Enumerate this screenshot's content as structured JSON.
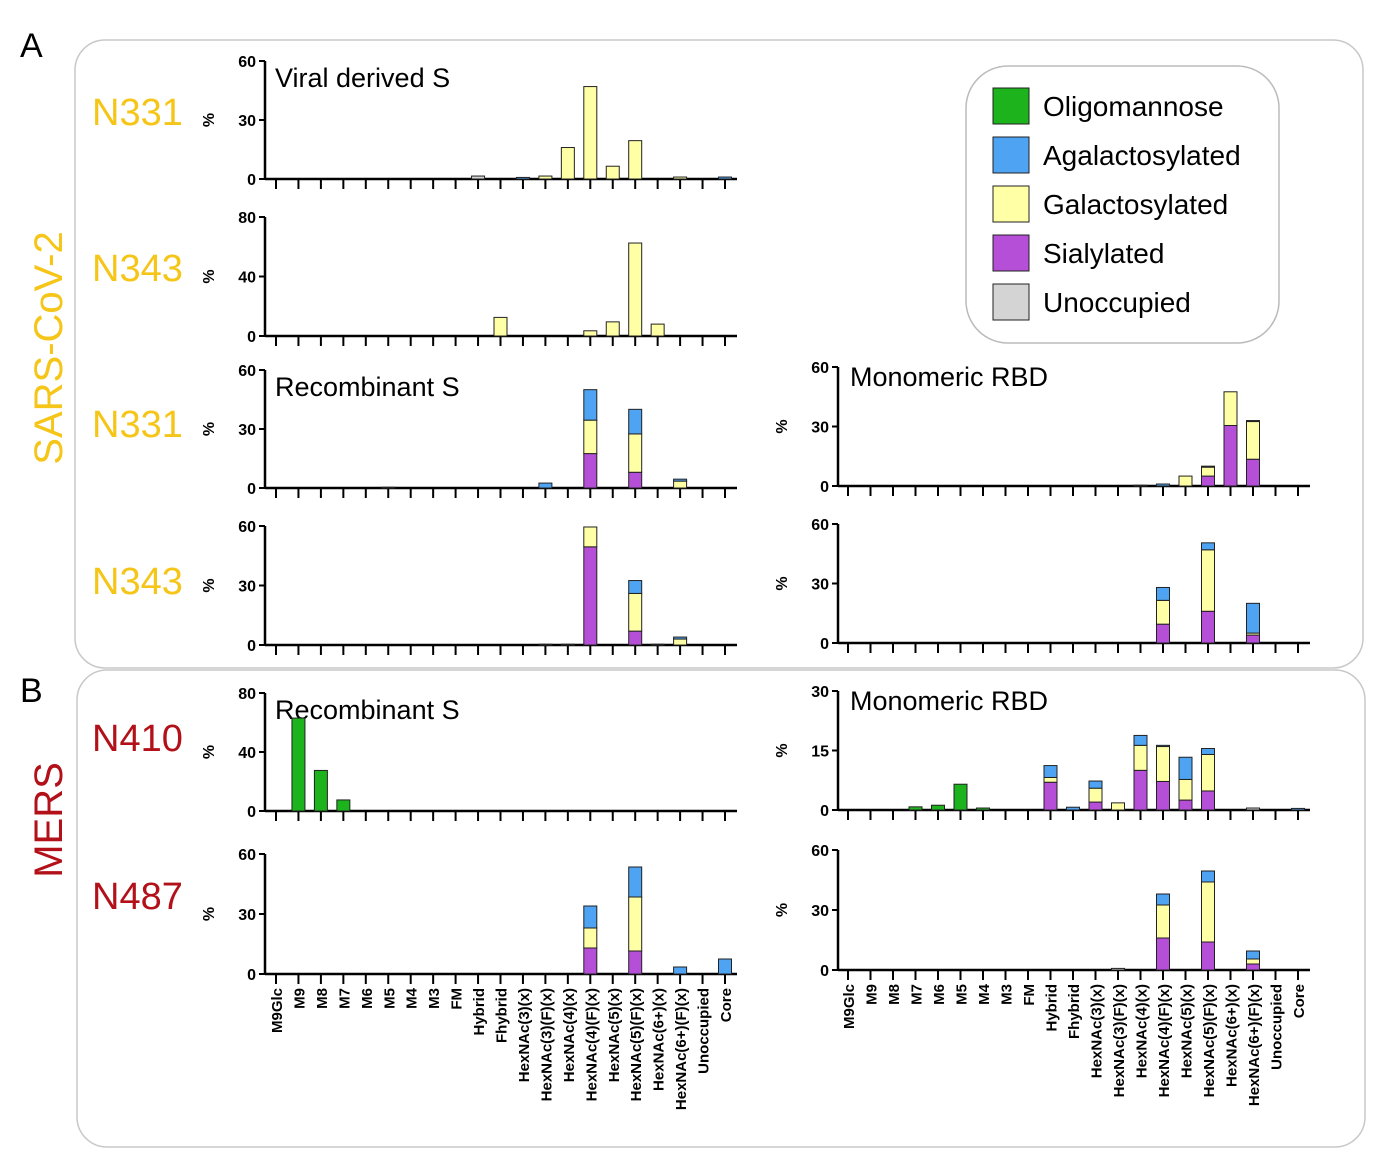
{
  "panels": {
    "a": {
      "letter": "A",
      "virus": "SARS-CoV-2",
      "virus_color": "#f5c518"
    },
    "b": {
      "letter": "B",
      "virus": "MERS",
      "virus_color": "#b3111a"
    }
  },
  "legend": [
    {
      "label": "Oligomannose",
      "color": "#1db31d"
    },
    {
      "label": "Agalactosylated",
      "color": "#4ea3f2"
    },
    {
      "label": "Galactosylated",
      "color": "#ffffa6"
    },
    {
      "label": "Sialylated",
      "color": "#b64fd8"
    },
    {
      "label": "Unoccupied",
      "color": "#d4d4d4"
    }
  ],
  "categories": [
    "M9Glc",
    "M9",
    "M8",
    "M7",
    "M6",
    "M5",
    "M4",
    "M3",
    "FM",
    "Hybrid",
    "Fhybrid",
    "HexNAc(3)(x)",
    "HexNAc(3)(F)(x)",
    "HexNAc(4)(x)",
    "HexNAc(4)(F)(x)",
    "HexNAc(5)(x)",
    "HexNAc(5)(F)(x)",
    "HexNAc(6+)(x)",
    "HexNAc(6+)(F)(x)",
    "Unoccupied",
    "Core"
  ],
  "chart_data": [
    {
      "type": "bar",
      "stacked": true,
      "panel": "A",
      "site": "N331",
      "title": "Viral derived S",
      "ylabel": "%",
      "ylim": [
        0,
        60
      ],
      "yticks": [
        0,
        30,
        60
      ],
      "bars": [
        {
          "category": "Hybrid",
          "unoccupied": 1.5
        },
        {
          "category": "HexNAc(3)(x)",
          "agalactosylated": 0.8
        },
        {
          "category": "HexNAc(3)(F)(x)",
          "galactosylated": 1.5
        },
        {
          "category": "HexNAc(4)(x)",
          "galactosylated": 16
        },
        {
          "category": "HexNAc(4)(F)(x)",
          "galactosylated": 47
        },
        {
          "category": "HexNAc(5)(x)",
          "galactosylated": 6.5
        },
        {
          "category": "HexNAc(5)(F)(x)",
          "galactosylated": 19.5
        },
        {
          "category": "HexNAc(6+)(F)(x)",
          "galactosylated": 1
        },
        {
          "category": "Core",
          "agalactosylated": 1
        }
      ]
    },
    {
      "type": "bar",
      "stacked": true,
      "panel": "A",
      "site": "N343",
      "title": "",
      "ylabel": "%",
      "ylim": [
        0,
        80
      ],
      "yticks": [
        0,
        40,
        80
      ],
      "bars": [
        {
          "category": "Fhybrid",
          "galactosylated": 12.5
        },
        {
          "category": "HexNAc(4)(F)(x)",
          "galactosylated": 3.5
        },
        {
          "category": "HexNAc(5)(x)",
          "galactosylated": 9.5
        },
        {
          "category": "HexNAc(5)(F)(x)",
          "galactosylated": 62.5
        },
        {
          "category": "HexNAc(6+)(x)",
          "galactosylated": 8
        }
      ]
    },
    {
      "type": "bar",
      "stacked": true,
      "panel": "A",
      "site": "N331",
      "title": "Recombinant S",
      "ylabel": "%",
      "ylim": [
        0,
        60
      ],
      "yticks": [
        0,
        30,
        60
      ],
      "bars": [
        {
          "category": "M5",
          "unoccupied": 0.4
        },
        {
          "category": "HexNAc(3)(F)(x)",
          "agalactosylated": 2.5
        },
        {
          "category": "HexNAc(4)(F)(x)",
          "sialylated": 17.5,
          "galactosylated": 17,
          "agalactosylated": 15.5
        },
        {
          "category": "HexNAc(5)(F)(x)",
          "sialylated": 8,
          "galactosylated": 19.5,
          "agalactosylated": 12.5
        },
        {
          "category": "HexNAc(6+)(F)(x)",
          "galactosylated": 3.5,
          "agalactosylated": 1
        }
      ]
    },
    {
      "type": "bar",
      "stacked": true,
      "panel": "A",
      "site": "N343",
      "title": "",
      "ylabel": "%",
      "ylim": [
        0,
        60
      ],
      "yticks": [
        0,
        30,
        60
      ],
      "bars": [
        {
          "category": "HexNAc(3)(F)(x)",
          "unoccupied": 0.4
        },
        {
          "category": "HexNAc(4)(x)",
          "unoccupied": 0.4
        },
        {
          "category": "HexNAc(4)(F)(x)",
          "sialylated": 49.5,
          "galactosylated": 10
        },
        {
          "category": "HexNAc(5)(F)(x)",
          "sialylated": 7,
          "galactosylated": 19,
          "agalactosylated": 6.5
        },
        {
          "category": "HexNAc(6+)(x)",
          "unoccupied": 0.4
        },
        {
          "category": "HexNAc(6+)(F)(x)",
          "galactosylated": 3,
          "agalactosylated": 1
        }
      ]
    },
    {
      "type": "bar",
      "stacked": true,
      "panel": "A",
      "site": "N331",
      "title": "Monomeric RBD",
      "ylabel": "%",
      "ylim": [
        0,
        60
      ],
      "yticks": [
        0,
        30,
        60
      ],
      "bars": [
        {
          "category": "HexNAc(4)(x)",
          "unoccupied": 0.4
        },
        {
          "category": "HexNAc(4)(F)(x)",
          "agalactosylated": 1
        },
        {
          "category": "HexNAc(5)(x)",
          "galactosylated": 5
        },
        {
          "category": "HexNAc(5)(F)(x)",
          "sialylated": 5,
          "galactosylated": 4.5,
          "agalactosylated": 0.5
        },
        {
          "category": "HexNAc(6+)(x)",
          "sialylated": 30.5,
          "galactosylated": 17
        },
        {
          "category": "HexNAc(6+)(F)(x)",
          "sialylated": 13.5,
          "galactosylated": 19,
          "agalactosylated": 0.5
        }
      ]
    },
    {
      "type": "bar",
      "stacked": true,
      "panel": "A",
      "site": "N343",
      "title": "",
      "ylabel": "%",
      "ylim": [
        0,
        60
      ],
      "yticks": [
        0,
        30,
        60
      ],
      "bars": [
        {
          "category": "HexNAc(4)(F)(x)",
          "sialylated": 9.5,
          "galactosylated": 12,
          "agalactosylated": 6.5
        },
        {
          "category": "HexNAc(5)(F)(x)",
          "sialylated": 16,
          "galactosylated": 31,
          "agalactosylated": 3.5
        },
        {
          "category": "HexNAc(6+)(F)(x)",
          "sialylated": 4,
          "galactosylated": 1,
          "agalactosylated": 15
        }
      ]
    },
    {
      "type": "bar",
      "stacked": true,
      "panel": "B",
      "site": "N410",
      "title": "Recombinant S",
      "ylabel": "%",
      "ylim": [
        0,
        80
      ],
      "yticks": [
        0,
        40,
        80
      ],
      "bars": [
        {
          "category": "M9",
          "oligomannose": 63
        },
        {
          "category": "M8",
          "oligomannose": 27.5
        },
        {
          "category": "M7",
          "oligomannose": 7.5
        }
      ]
    },
    {
      "type": "bar",
      "stacked": true,
      "panel": "B",
      "site": "N487",
      "title": "",
      "ylabel": "%",
      "ylim": [
        0,
        60
      ],
      "yticks": [
        0,
        30,
        60
      ],
      "bars": [
        {
          "category": "HexNAc(4)(F)(x)",
          "sialylated": 13,
          "galactosylated": 10,
          "agalactosylated": 11
        },
        {
          "category": "HexNAc(5)(F)(x)",
          "sialylated": 11.5,
          "galactosylated": 27,
          "agalactosylated": 15
        },
        {
          "category": "HexNAc(6+)(F)(x)",
          "agalactosylated": 3.5
        },
        {
          "category": "Core",
          "agalactosylated": 7.5
        }
      ]
    },
    {
      "type": "bar",
      "stacked": true,
      "panel": "B",
      "site": "N410",
      "title": "Monomeric RBD",
      "ylabel": "%",
      "ylim": [
        0,
        30
      ],
      "yticks": [
        0,
        15,
        30
      ],
      "bars": [
        {
          "category": "M7",
          "oligomannose": 0.8
        },
        {
          "category": "M6",
          "oligomannose": 1.2
        },
        {
          "category": "M5",
          "oligomannose": 6.5
        },
        {
          "category": "M4",
          "oligomannose": 0.5
        },
        {
          "category": "Hybrid",
          "sialylated": 7,
          "galactosylated": 1.2,
          "agalactosylated": 3
        },
        {
          "category": "Fhybrid",
          "agalactosylated": 0.7
        },
        {
          "category": "HexNAc(3)(x)",
          "sialylated": 2,
          "galactosylated": 3.5,
          "agalactosylated": 1.8
        },
        {
          "category": "HexNAc(3)(F)(x)",
          "galactosylated": 1.8
        },
        {
          "category": "HexNAc(4)(x)",
          "sialylated": 10,
          "galactosylated": 6.3,
          "agalactosylated": 2.5
        },
        {
          "category": "HexNAc(4)(F)(x)",
          "sialylated": 7.2,
          "galactosylated": 8.8,
          "agalactosylated": 0.3
        },
        {
          "category": "HexNAc(5)(x)",
          "sialylated": 2.5,
          "galactosylated": 5.2,
          "agalactosylated": 5.6
        },
        {
          "category": "HexNAc(5)(F)(x)",
          "sialylated": 4.8,
          "galactosylated": 9.2,
          "agalactosylated": 1.5
        },
        {
          "category": "HexNAc(6+)(F)(x)",
          "unoccupied": 0.5
        },
        {
          "category": "Core",
          "agalactosylated": 0.4
        }
      ]
    },
    {
      "type": "bar",
      "stacked": true,
      "panel": "B",
      "site": "N487",
      "title": "",
      "ylabel": "%",
      "ylim": [
        0,
        60
      ],
      "yticks": [
        0,
        30,
        60
      ],
      "bars": [
        {
          "category": "HexNAc(3)(F)(x)",
          "unoccupied": 0.8
        },
        {
          "category": "HexNAc(4)(F)(x)",
          "sialylated": 16,
          "galactosylated": 16.5,
          "agalactosylated": 5.5
        },
        {
          "category": "HexNAc(5)(F)(x)",
          "sialylated": 14,
          "galactosylated": 30,
          "agalactosylated": 5.5
        },
        {
          "category": "HexNAc(6+)(F)(x)",
          "sialylated": 3,
          "galactosylated": 2.5,
          "agalactosylated": 4
        }
      ]
    }
  ]
}
